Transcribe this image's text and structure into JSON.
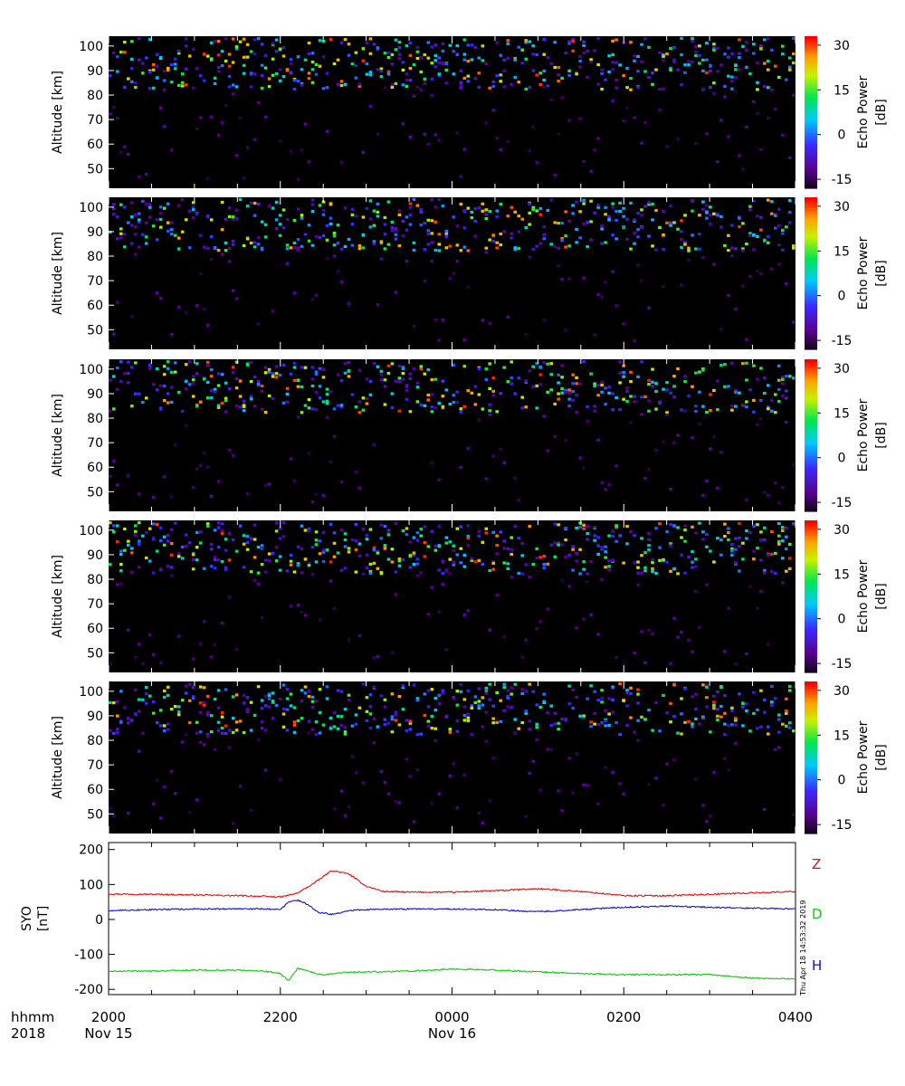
{
  "colors": {
    "background": "#000000",
    "Z": "#e01010",
    "D": "#10c810",
    "H": "#1010cc"
  },
  "timestamp": "Thu Apr 18 14:53:32 2019",
  "time_axis": {
    "label_left": [
      "hhmm",
      "2018"
    ],
    "ticks": [
      "2000",
      "2200",
      "0000",
      "0200",
      "0400"
    ],
    "dates": [
      "Nov 15",
      "Nov 16"
    ]
  },
  "chart_data": [
    {
      "type": "heatmap",
      "ylabel": "Altitude [km]",
      "yticks": [
        50,
        60,
        70,
        80,
        90,
        100
      ],
      "ylim": [
        42,
        104
      ],
      "colorbar": {
        "label": "Echo Power",
        "unit": "[dB]",
        "ticks": [
          -15,
          0,
          15,
          30
        ],
        "range": [
          -18,
          33
        ]
      },
      "xlim_hours": [
        20,
        28
      ],
      "seed": 11
    },
    {
      "type": "heatmap",
      "ylabel": "Altitude [km]",
      "yticks": [
        50,
        60,
        70,
        80,
        90,
        100
      ],
      "ylim": [
        42,
        104
      ],
      "colorbar": {
        "label": "Echo Power",
        "unit": "[dB]",
        "ticks": [
          -15,
          0,
          15,
          30
        ],
        "range": [
          -18,
          33
        ]
      },
      "xlim_hours": [
        20,
        28
      ],
      "seed": 23
    },
    {
      "type": "heatmap",
      "ylabel": "Altitude [km]",
      "yticks": [
        50,
        60,
        70,
        80,
        90,
        100
      ],
      "ylim": [
        42,
        104
      ],
      "colorbar": {
        "label": "Echo Power",
        "unit": "[dB]",
        "ticks": [
          -15,
          0,
          15,
          30
        ],
        "range": [
          -18,
          33
        ]
      },
      "xlim_hours": [
        20,
        28
      ],
      "seed": 37
    },
    {
      "type": "heatmap",
      "ylabel": "Altitude [km]",
      "yticks": [
        50,
        60,
        70,
        80,
        90,
        100
      ],
      "ylim": [
        42,
        104
      ],
      "colorbar": {
        "label": "Echo Power",
        "unit": "[dB]",
        "ticks": [
          -15,
          0,
          15,
          30
        ],
        "range": [
          -18,
          33
        ]
      },
      "xlim_hours": [
        20,
        28
      ],
      "seed": 41
    },
    {
      "type": "heatmap",
      "ylabel": "Altitude [km]",
      "yticks": [
        50,
        60,
        70,
        80,
        90,
        100
      ],
      "ylim": [
        42,
        104
      ],
      "colorbar": {
        "label": "Echo Power",
        "unit": "[dB]",
        "ticks": [
          -15,
          0,
          15,
          30
        ],
        "range": [
          -18,
          33
        ]
      },
      "xlim_hours": [
        20,
        28
      ],
      "seed": 53
    },
    {
      "type": "line",
      "ylabel": [
        "SYO",
        "[nT]"
      ],
      "yticks": [
        -200,
        -100,
        0,
        100,
        200
      ],
      "ylim": [
        -215,
        220
      ],
      "xlim_hours": [
        20,
        28
      ],
      "series": [
        {
          "name": "Z",
          "color": "#e01010",
          "x": [
            20.0,
            20.5,
            21.0,
            21.5,
            21.8,
            22.0,
            22.2,
            22.4,
            22.6,
            22.8,
            23.0,
            23.2,
            23.5,
            24.0,
            24.5,
            25.0,
            25.5,
            26.0,
            26.5,
            27.0,
            27.5,
            28.0
          ],
          "y": [
            73,
            72,
            70,
            68,
            66,
            64,
            75,
            105,
            140,
            130,
            95,
            80,
            78,
            78,
            82,
            88,
            80,
            68,
            68,
            72,
            76,
            80
          ]
        },
        {
          "name": "D",
          "color": "#10c810",
          "x": [
            20.0,
            20.5,
            21.0,
            21.5,
            21.8,
            22.0,
            22.1,
            22.2,
            22.35,
            22.5,
            22.7,
            23.0,
            23.5,
            24.0,
            24.5,
            25.0,
            25.5,
            26.0,
            26.5,
            27.0,
            27.5,
            28.0
          ],
          "y": [
            -148,
            -148,
            -145,
            -145,
            -148,
            -155,
            -175,
            -140,
            -150,
            -160,
            -152,
            -150,
            -148,
            -142,
            -145,
            -150,
            -155,
            -158,
            -158,
            -158,
            -168,
            -170
          ]
        },
        {
          "name": "H",
          "color": "#1010cc",
          "x": [
            20.0,
            20.5,
            21.0,
            21.5,
            21.8,
            22.0,
            22.1,
            22.2,
            22.3,
            22.45,
            22.6,
            22.8,
            23.0,
            23.5,
            24.0,
            24.5,
            25.0,
            25.5,
            26.0,
            26.5,
            27.0,
            27.5,
            28.0
          ],
          "y": [
            25,
            28,
            30,
            30,
            30,
            28,
            50,
            55,
            45,
            20,
            15,
            25,
            28,
            30,
            30,
            28,
            22,
            28,
            35,
            38,
            35,
            32,
            30
          ]
        }
      ]
    }
  ]
}
